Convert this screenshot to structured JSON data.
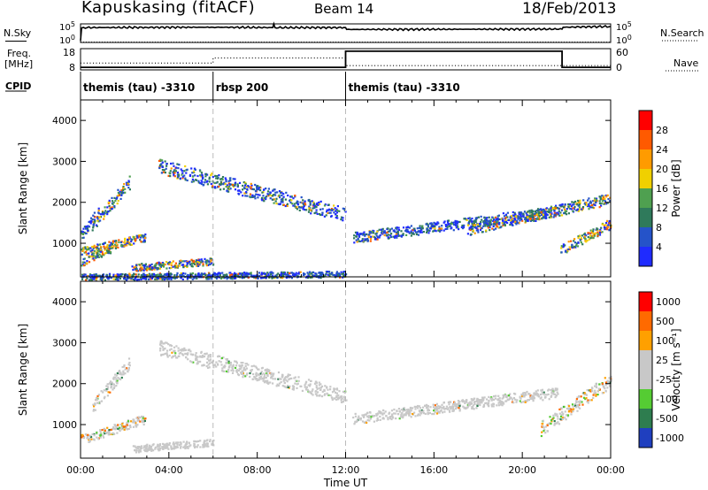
{
  "header": {
    "station": "Kapuskasing (fitACF)",
    "beam": "Beam 14",
    "date": "18/Feb/2013"
  },
  "side_labels": {
    "nsky": "N.Sky",
    "freq_line1": "Freq.",
    "freq_line2": "[MHz]",
    "cpid": "CPID",
    "nsearch": "N.Search",
    "nave": "Nave"
  },
  "chart_data": [
    {
      "type": "line",
      "panel": "noise",
      "left_ticks": [
        "10^5",
        "10^0"
      ],
      "right_ticks": [
        "10^5",
        "10^0"
      ],
      "series": [
        {
          "name": "N.Sky",
          "style": "solid",
          "x": [
            0.0,
            0.05,
            0.3,
            3.0,
            6.0,
            8.7,
            8.75,
            8.8,
            12.0,
            12.05,
            21.8,
            21.85,
            24.0
          ],
          "y": [
            0.1,
            0.78,
            0.8,
            0.81,
            0.82,
            0.8,
            1.0,
            0.8,
            0.8,
            0.7,
            0.72,
            0.82,
            0.86
          ]
        },
        {
          "name": "N.Search",
          "style": "dotted",
          "x": [
            0.0,
            24.0
          ],
          "y": [
            0.02,
            0.02
          ]
        }
      ]
    },
    {
      "type": "line",
      "panel": "freq-nave",
      "left_ticks": [
        "18",
        "8"
      ],
      "right_ticks": [
        "60",
        "0"
      ],
      "series": [
        {
          "name": "Freq.",
          "style": "dotted",
          "x": [
            0.0,
            6.0,
            6.0,
            12.0,
            12.0,
            21.8,
            21.8,
            24.0
          ],
          "y": [
            0.32,
            0.32,
            0.56,
            0.56,
            0.2,
            0.2,
            0.2,
            0.2
          ]
        },
        {
          "name": "Nave",
          "style": "solid",
          "x": [
            0.0,
            12.0,
            12.0,
            21.8,
            21.8,
            24.0
          ],
          "y": [
            0.12,
            0.12,
            0.88,
            0.88,
            0.12,
            0.12
          ]
        }
      ]
    },
    {
      "type": "table",
      "panel": "cpid",
      "segments": [
        {
          "start": 0.0,
          "label": "themis (tau) -3310"
        },
        {
          "start": 6.0,
          "label": "rbsp 200"
        },
        {
          "start": 12.0,
          "label": "themis (tau) -3310"
        }
      ]
    },
    {
      "type": "heatmap",
      "panel": "power",
      "ylabel": "Slant Range [km]",
      "xlabel": "",
      "ylim": [
        180,
        4500
      ],
      "xlim": [
        0,
        24
      ],
      "x_ticks": [
        "00:00",
        "04:00",
        "08:00",
        "12:00",
        "16:00",
        "20:00",
        "00:00"
      ],
      "y_ticks": [
        1000,
        2000,
        3000,
        4000
      ],
      "colorbar": {
        "label": "Power [dB]",
        "ticks": [
          4,
          8,
          12,
          16,
          20,
          24,
          28
        ],
        "colors": [
          "#1f2bff",
          "#2553c9",
          "#2f7a5b",
          "#4fa050",
          "#f0d000",
          "#ff9b00",
          "#ff5a00",
          "#ff0000"
        ]
      },
      "scatter_bands": [
        {
          "x0": 0.0,
          "x1": 2.9,
          "y0": 820,
          "y1": 1150,
          "mid": 0.6
        },
        {
          "x0": 0.0,
          "x1": 1.4,
          "y0": 550,
          "y1": 900,
          "mid": 0.55
        },
        {
          "x0": 0.5,
          "x1": 2.2,
          "y0": 1450,
          "y1": 2500,
          "mid": 0.3
        },
        {
          "x0": 0.0,
          "x1": 0.8,
          "y0": 1200,
          "y1": 1800,
          "mid": 0.35
        },
        {
          "x0": 2.3,
          "x1": 6.0,
          "y0": 420,
          "y1": 580,
          "mid": 0.45
        },
        {
          "x0": 3.5,
          "x1": 12.0,
          "y0": 2900,
          "y1": 1700,
          "mid": 0.2
        },
        {
          "x0": 12.3,
          "x1": 21.6,
          "y0": 1150,
          "y1": 1800,
          "mid": 0.1
        },
        {
          "x0": 17.5,
          "x1": 24.0,
          "y0": 1350,
          "y1": 2100,
          "mid": 0.3
        },
        {
          "x0": 21.7,
          "x1": 24.0,
          "y0": 850,
          "y1": 1500,
          "mid": 0.6
        },
        {
          "x0": 0.0,
          "x1": 12.0,
          "y0": 190,
          "y1": 260,
          "mid": 0.1
        }
      ]
    },
    {
      "type": "heatmap",
      "panel": "velocity",
      "ylabel": "Slant Range [km]",
      "xlabel": "Time UT",
      "ylim": [
        180,
        4500
      ],
      "xlim": [
        0,
        24
      ],
      "x_ticks": [
        "00:00",
        "04:00",
        "08:00",
        "12:00",
        "16:00",
        "20:00",
        "00:00"
      ],
      "y_ticks": [
        1000,
        2000,
        3000,
        4000
      ],
      "colorbar": {
        "label": "Velocity [m s⁻¹]",
        "ticks": [
          1000,
          500,
          100,
          25,
          -25,
          -100,
          -500,
          -1000
        ],
        "colors": [
          "#1f3fbf",
          "#2e7d4f",
          "#55cc33",
          "#c8c8c8",
          "#c8c8c8",
          "#ffa000",
          "#ff6a00",
          "#ff0000"
        ]
      },
      "scatter_bands": [
        {
          "x0": 0.0,
          "x1": 2.9,
          "y0": 650,
          "y1": 1150,
          "mid": 0.3
        },
        {
          "x0": 0.5,
          "x1": 2.2,
          "y0": 1450,
          "y1": 2500,
          "mid": 0.1
        },
        {
          "x0": 2.3,
          "x1": 6.0,
          "y0": 420,
          "y1": 580,
          "mid": 0.0
        },
        {
          "x0": 3.5,
          "x1": 12.0,
          "y0": 2900,
          "y1": 1700,
          "mid": 0.05
        },
        {
          "x0": 12.3,
          "x1": 21.6,
          "y0": 1150,
          "y1": 1800,
          "mid": 0.05
        },
        {
          "x0": 20.8,
          "x1": 24.0,
          "y0": 900,
          "y1": 2100,
          "mid": 0.4
        }
      ]
    }
  ]
}
